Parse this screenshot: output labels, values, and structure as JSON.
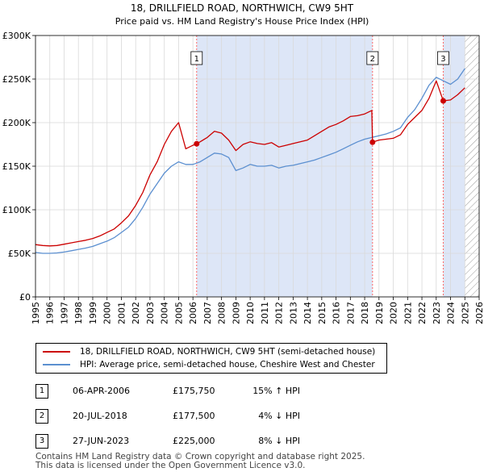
{
  "chart_data": {
    "type": "line",
    "title": "18, DRILLFIELD ROAD, NORTHWICH, CW9 5HT",
    "subtitle": "Price paid vs. HM Land Registry's House Price Index (HPI)",
    "xlabel": "",
    "ylabel": "",
    "xlim": [
      1995,
      2026
    ],
    "ylim": [
      0,
      300000
    ],
    "y_ticks": [
      {
        "value": 0,
        "label": "£0"
      },
      {
        "value": 50000,
        "label": "£50K"
      },
      {
        "value": 100000,
        "label": "£100K"
      },
      {
        "value": 150000,
        "label": "£150K"
      },
      {
        "value": 200000,
        "label": "£200K"
      },
      {
        "value": 250000,
        "label": "£250K"
      },
      {
        "value": 300000,
        "label": "£300K"
      }
    ],
    "x_ticks": [
      "1995",
      "1996",
      "1997",
      "1998",
      "1999",
      "2000",
      "2001",
      "2002",
      "2003",
      "2004",
      "2005",
      "2006",
      "2007",
      "2008",
      "2009",
      "2010",
      "2011",
      "2012",
      "2013",
      "2014",
      "2015",
      "2016",
      "2017",
      "2018",
      "2019",
      "2020",
      "2021",
      "2022",
      "2023",
      "2024",
      "2025",
      "2026"
    ],
    "grid": true,
    "shaded_ranges": [
      [
        2006.26,
        2018.55
      ],
      [
        2023.49,
        2025.0
      ]
    ],
    "hatched_from": 2025.0,
    "colors": {
      "property": "#cc0000",
      "hpi": "#5b8fd0",
      "shade": "#dde6f7",
      "marker_line": "#ff6666"
    },
    "series": [
      {
        "name": "18, DRILLFIELD ROAD, NORTHWICH, CW9 5HT (semi-detached house)",
        "color": "#cc0000",
        "x": [
          1995.0,
          1995.5,
          1996.0,
          1996.5,
          1997.0,
          1997.5,
          1998.0,
          1998.5,
          1999.0,
          1999.5,
          2000.0,
          2000.5,
          2001.0,
          2001.5,
          2002.0,
          2002.5,
          2003.0,
          2003.5,
          2004.0,
          2004.5,
          2005.0,
          2005.5,
          2006.0,
          2006.26,
          2006.5,
          2007.0,
          2007.5,
          2008.0,
          2008.5,
          2009.0,
          2009.5,
          2010.0,
          2010.5,
          2011.0,
          2011.5,
          2012.0,
          2012.5,
          2013.0,
          2013.5,
          2014.0,
          2014.5,
          2015.0,
          2015.5,
          2016.0,
          2016.5,
          2017.0,
          2017.5,
          2018.0,
          2018.5,
          2018.55,
          2019.0,
          2019.5,
          2020.0,
          2020.5,
          2021.0,
          2021.5,
          2022.0,
          2022.5,
          2023.0,
          2023.49,
          2024.0,
          2024.5,
          2025.0
        ],
        "y": [
          60000,
          59000,
          58500,
          59000,
          60500,
          62000,
          63500,
          65000,
          67000,
          70000,
          74000,
          78000,
          85000,
          93000,
          105000,
          120000,
          140000,
          155000,
          175000,
          190000,
          200000,
          170000,
          174000,
          175750,
          178000,
          183000,
          190000,
          188000,
          180000,
          168000,
          175000,
          178000,
          176000,
          175000,
          177000,
          172000,
          174000,
          176000,
          178000,
          180000,
          185000,
          190000,
          195000,
          198000,
          202000,
          207000,
          208000,
          210000,
          214000,
          177500,
          180000,
          181000,
          182000,
          186000,
          198000,
          206000,
          214000,
          228000,
          248000,
          225000,
          226000,
          232000,
          240000
        ]
      },
      {
        "name": "HPI: Average price, semi-detached house, Cheshire West and Chester",
        "color": "#5b8fd0",
        "x": [
          1995.0,
          1995.5,
          1996.0,
          1996.5,
          1997.0,
          1997.5,
          1998.0,
          1998.5,
          1999.0,
          1999.5,
          2000.0,
          2000.5,
          2001.0,
          2001.5,
          2002.0,
          2002.5,
          2003.0,
          2003.5,
          2004.0,
          2004.5,
          2005.0,
          2005.5,
          2006.0,
          2006.5,
          2007.0,
          2007.5,
          2008.0,
          2008.5,
          2009.0,
          2009.5,
          2010.0,
          2010.5,
          2011.0,
          2011.5,
          2012.0,
          2012.5,
          2013.0,
          2013.5,
          2014.0,
          2014.5,
          2015.0,
          2015.5,
          2016.0,
          2016.5,
          2017.0,
          2017.5,
          2018.0,
          2018.5,
          2019.0,
          2019.5,
          2020.0,
          2020.5,
          2021.0,
          2021.5,
          2022.0,
          2022.5,
          2023.0,
          2023.5,
          2024.0,
          2024.5,
          2025.0
        ],
        "y": [
          51000,
          50000,
          50000,
          50500,
          51500,
          53000,
          54500,
          56000,
          58000,
          61000,
          64000,
          68000,
          74000,
          80000,
          90000,
          103000,
          118000,
          130000,
          142000,
          150000,
          155000,
          152000,
          152000,
          155000,
          160000,
          165000,
          164000,
          160000,
          145000,
          148000,
          152000,
          150000,
          150000,
          151000,
          148000,
          150000,
          151000,
          153000,
          155000,
          157000,
          160000,
          163000,
          166000,
          170000,
          174000,
          178000,
          181000,
          183000,
          185000,
          187000,
          190000,
          194000,
          206000,
          215000,
          228000,
          243000,
          252000,
          248000,
          244000,
          250000,
          262000
        ]
      }
    ],
    "sales": [
      {
        "num": "1",
        "date": "06-APR-2006",
        "x": 2006.26,
        "price": "£175,750",
        "value": 175750,
        "hpi": "15% ↑ HPI"
      },
      {
        "num": "2",
        "date": "20-JUL-2018",
        "x": 2018.55,
        "price": "£177,500",
        "value": 177500,
        "hpi": "4% ↓ HPI"
      },
      {
        "num": "3",
        "date": "27-JUN-2023",
        "x": 2023.49,
        "price": "£225,000",
        "value": 225000,
        "hpi": "8% ↓ HPI"
      }
    ]
  },
  "footer": {
    "line1": "Contains HM Land Registry data © Crown copyright and database right 2025.",
    "line2": "This data is licensed under the Open Government Licence v3.0."
  }
}
